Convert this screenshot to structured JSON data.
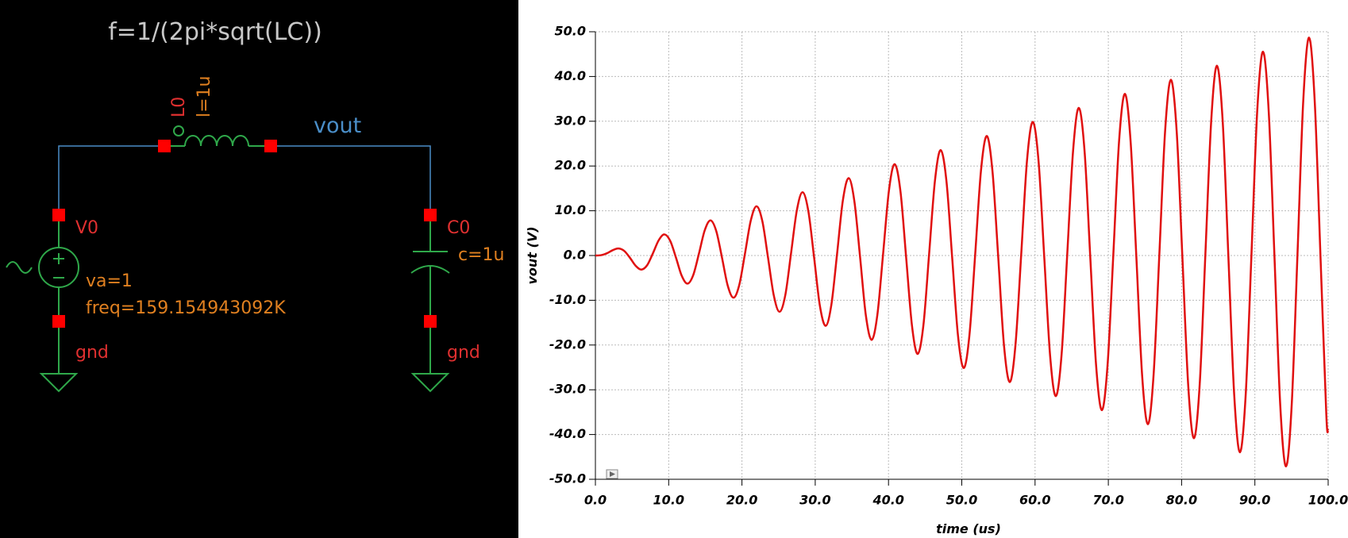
{
  "schematic": {
    "equation": "f=1/(2pi*sqrt(LC))",
    "inductor_name": "L0",
    "inductor_value": "l=1u",
    "net_label": "vout",
    "source_name": "V0",
    "source_amplitude": "va=1",
    "source_freq": "freq=159.154943092K",
    "capacitor_name": "C0",
    "capacitor_value": "c=1u",
    "ground_left": "gnd",
    "ground_right": "gnd"
  },
  "chart_data": {
    "type": "line",
    "ylabel": "vout (V)",
    "xlabel": "time (us)",
    "color": "#e01010",
    "grid": true,
    "xlim": [
      0,
      100
    ],
    "xticks": [
      {
        "value": 0,
        "label": "0.0"
      },
      {
        "value": 10,
        "label": "10.0"
      },
      {
        "value": 20,
        "label": "20.0"
      },
      {
        "value": 30,
        "label": "30.0"
      },
      {
        "value": 40,
        "label": "40.0"
      },
      {
        "value": 50,
        "label": "50.0"
      },
      {
        "value": 60,
        "label": "60.0"
      },
      {
        "value": 70,
        "label": "70.0"
      },
      {
        "value": 80,
        "label": "80.0"
      },
      {
        "value": 90,
        "label": "90.0"
      },
      {
        "value": 100,
        "label": "100.0"
      }
    ],
    "ylim": [
      -50,
      50
    ],
    "yticks": [
      {
        "value": -50,
        "label": "-50.0"
      },
      {
        "value": -40,
        "label": "-40.0"
      },
      {
        "value": -30,
        "label": "-30.0"
      },
      {
        "value": -20,
        "label": "-20.0"
      },
      {
        "value": -10,
        "label": "-10.0"
      },
      {
        "value": 0,
        "label": "0.0"
      },
      {
        "value": 10,
        "label": "10.0"
      },
      {
        "value": 20,
        "label": "20.0"
      },
      {
        "value": 30,
        "label": "30.0"
      },
      {
        "value": 40,
        "label": "40.0"
      },
      {
        "value": 50,
        "label": "50.0"
      }
    ],
    "x": [
      0,
      0.79,
      1.57,
      2.36,
      3.14,
      3.93,
      4.71,
      5.5,
      6.28,
      7.07,
      7.85,
      8.64,
      9.42,
      10.21,
      11.0,
      11.78,
      12.57,
      13.35,
      14.14,
      14.92,
      15.71,
      16.49,
      17.28,
      18.06,
      18.85,
      19.63,
      20.42,
      21.21,
      21.99,
      22.78,
      23.56,
      24.35,
      25.13,
      25.92,
      26.7,
      27.49,
      28.27,
      29.06,
      29.85,
      30.63,
      31.42,
      32.2,
      32.99,
      33.77,
      34.56,
      35.34,
      36.13,
      36.91,
      37.7,
      38.48,
      39.27,
      40.06,
      40.84,
      41.63,
      42.41,
      43.2,
      43.98,
      44.77,
      45.55,
      46.34,
      47.12,
      47.91,
      48.69,
      49.48,
      50.27,
      51.05,
      51.84,
      52.62,
      53.41,
      54.19,
      54.98,
      55.76,
      56.55,
      57.33,
      58.12,
      58.9,
      59.69,
      60.48,
      61.26,
      62.05,
      62.83,
      63.62,
      64.4,
      65.19,
      65.97,
      66.76,
      67.54,
      68.33,
      69.12,
      69.9,
      70.69,
      71.47,
      72.26,
      73.04,
      73.83,
      74.61,
      75.4,
      76.18,
      76.97,
      77.75,
      78.54,
      79.33,
      80.11,
      80.9,
      81.68,
      82.47,
      83.25,
      84.04,
      84.82,
      85.61,
      86.39,
      87.18,
      87.96,
      88.75,
      89.54,
      90.32,
      91.11,
      91.89,
      92.68,
      93.46,
      94.25,
      95.03,
      95.82,
      96.6,
      97.39,
      98.17,
      98.96,
      99.75,
      100
    ],
    "values": [
      0,
      0.08,
      0.5,
      1.19,
      1.57,
      1.03,
      -0.5,
      -2.3,
      -3.14,
      -2.15,
      0.5,
      3.41,
      4.71,
      3.26,
      -0.5,
      -4.52,
      -6.28,
      -4.37,
      0.5,
      5.63,
      7.85,
      5.48,
      -0.5,
      -6.74,
      -9.42,
      -6.59,
      0.5,
      7.85,
      11.0,
      7.7,
      -0.5,
      -8.96,
      -12.57,
      -8.81,
      0.5,
      10.07,
      14.14,
      9.92,
      -0.5,
      -11.18,
      -15.71,
      -11.03,
      0.5,
      12.29,
      17.28,
      12.14,
      -0.5,
      -13.4,
      -18.85,
      -13.25,
      0.5,
      14.52,
      20.42,
      14.36,
      -0.5,
      -15.63,
      -21.99,
      -15.47,
      0.5,
      16.74,
      23.56,
      16.58,
      -0.5,
      -17.85,
      -25.13,
      -17.7,
      0.5,
      18.96,
      26.7,
      18.81,
      -0.5,
      -20.07,
      -28.27,
      -19.92,
      0.5,
      21.18,
      29.85,
      21.03,
      -0.5,
      -22.29,
      -31.42,
      -22.14,
      0.5,
      23.4,
      32.99,
      23.25,
      -0.5,
      -24.51,
      -34.56,
      -24.36,
      0.5,
      25.62,
      36.13,
      25.47,
      -0.5,
      -26.73,
      -37.7,
      -26.58,
      0.5,
      27.84,
      39.27,
      27.69,
      -0.5,
      -28.95,
      -40.84,
      -28.8,
      0.5,
      30.06,
      42.41,
      29.91,
      -0.5,
      -31.18,
      -43.98,
      -31.02,
      0.5,
      32.29,
      45.55,
      32.13,
      -0.5,
      -33.4,
      -47.12,
      -33.24,
      0.5,
      34.51,
      48.69,
      34.35,
      -0.5,
      -35.62,
      -39
    ]
  }
}
